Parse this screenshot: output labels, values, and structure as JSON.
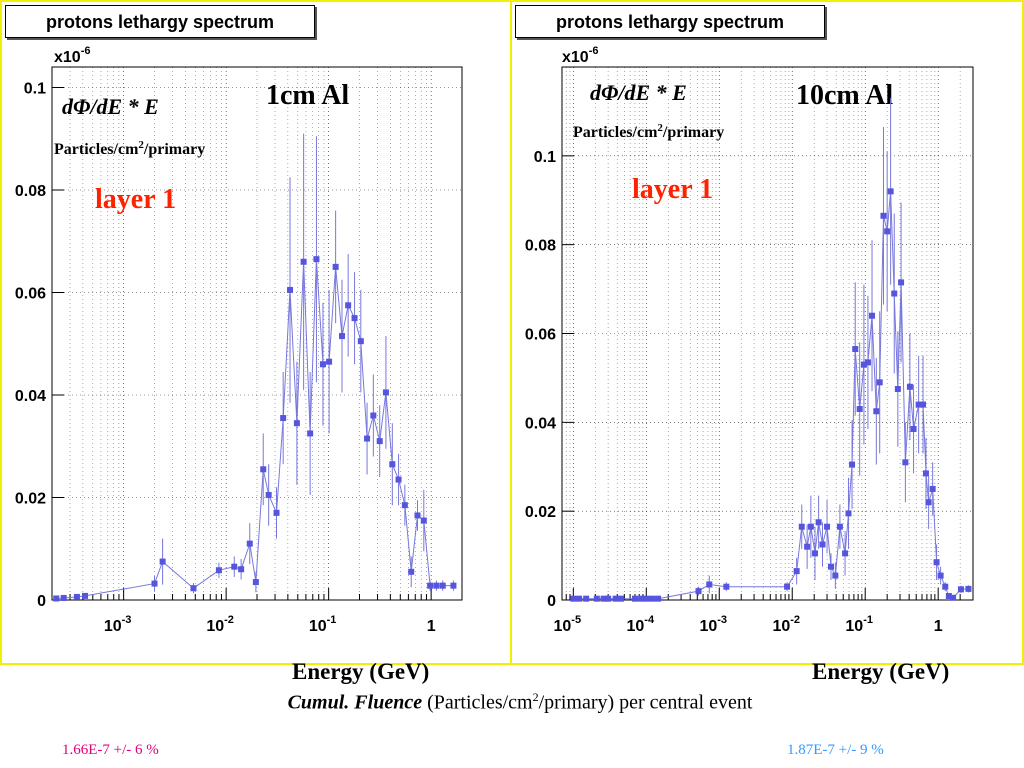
{
  "caption": {
    "bold_part": "Cumul. Fluence",
    "rest_before_sup": " (Particles/cm",
    "sup": "2",
    "rest_after_sup": "/primary) per central event"
  },
  "results": {
    "left": "1.66E-7 +/- 6 %",
    "right": "1.87E-7 +/- 9 %",
    "left_color": "#e0007a",
    "right_color": "#3399ff"
  },
  "colors": {
    "marker": "#5555dd",
    "line": "#7777dd",
    "frame": "#f0f000",
    "red": "#ff2200"
  },
  "chart_data": [
    {
      "type": "line",
      "title": "protons lethargy spectrum",
      "exponent": "x10",
      "exponent_sup": "-6",
      "ylabel": "dΦ/dE * E",
      "units_before_sup": "Particles/cm",
      "units_sup": "2",
      "units_after_sup": "/primary",
      "annotation": "1cm Al",
      "layer_label": "layer 1",
      "xlabel": "Energy (GeV)",
      "xscale": "log",
      "xlim": [
        0.0002,
        2
      ],
      "ylim": [
        0,
        0.104
      ],
      "xticks": [
        {
          "v": 0.001,
          "m": "10",
          "e": "-3"
        },
        {
          "v": 0.01,
          "m": "10",
          "e": "-2"
        },
        {
          "v": 0.1,
          "m": "10",
          "e": "-1"
        },
        {
          "v": 1,
          "m": "1",
          "e": ""
        }
      ],
      "yticks": [
        "0",
        "0.02",
        "0.04",
        "0.06",
        "0.08",
        "0.1"
      ],
      "grid": true,
      "x": [
        0.00022,
        0.00026,
        0.00035,
        0.00042,
        0.002,
        0.0024,
        0.0048,
        0.0085,
        0.012,
        0.014,
        0.017,
        0.0195,
        0.023,
        0.026,
        0.031,
        0.036,
        0.042,
        0.049,
        0.057,
        0.066,
        0.076,
        0.088,
        0.101,
        0.117,
        0.135,
        0.155,
        0.179,
        0.206,
        0.237,
        0.273,
        0.315,
        0.362,
        0.418,
        0.481,
        0.554,
        0.639,
        0.736,
        0.848,
        0.977,
        1.125,
        1.297,
        1.65
      ],
      "y": [
        0.0003,
        0.0004,
        0.0006,
        0.0008,
        0.0032,
        0.0075,
        0.0023,
        0.0058,
        0.0065,
        0.006,
        0.011,
        0.0035,
        0.0255,
        0.0205,
        0.017,
        0.0355,
        0.0605,
        0.0345,
        0.066,
        0.0325,
        0.0665,
        0.046,
        0.0465,
        0.065,
        0.0515,
        0.0575,
        0.055,
        0.0505,
        0.0315,
        0.036,
        0.031,
        0.0405,
        0.0265,
        0.0235,
        0.0185,
        0.0055,
        0.0165,
        0.0155,
        0.0028,
        0.0028,
        0.0028,
        0.0028
      ],
      "yerr": [
        0,
        0,
        0,
        0,
        0.0015,
        0.0045,
        0.001,
        0.0015,
        0.002,
        0.002,
        0.004,
        0.002,
        0.007,
        0.006,
        0.005,
        0.009,
        0.022,
        0.012,
        0.025,
        0.012,
        0.024,
        0.012,
        0.014,
        0.011,
        0.011,
        0.01,
        0.009,
        0.01,
        0.007,
        0.008,
        0.007,
        0.011,
        0.008,
        0.005,
        0.004,
        0.003,
        0.003,
        0.006,
        0.001,
        0.001,
        0.001,
        0.001
      ]
    },
    {
      "type": "line",
      "title": "protons lethargy spectrum",
      "exponent": "x10",
      "exponent_sup": "-6",
      "ylabel": "dΦ/dE * E",
      "units_before_sup": "Particles/cm",
      "units_sup": "2",
      "units_after_sup": "/primary",
      "annotation": "10cm Al",
      "layer_label": "layer 1",
      "xlabel": "Energy (GeV)",
      "xscale": "log",
      "xlim": [
        7e-06,
        3
      ],
      "ylim": [
        0,
        0.12
      ],
      "xticks": [
        {
          "v": 1e-05,
          "m": "10",
          "e": "-5"
        },
        {
          "v": 0.0001,
          "m": "10",
          "e": "-4"
        },
        {
          "v": 0.001,
          "m": "10",
          "e": "-3"
        },
        {
          "v": 0.01,
          "m": "10",
          "e": "-2"
        },
        {
          "v": 0.1,
          "m": "10",
          "e": "-1"
        },
        {
          "v": 1,
          "m": "1",
          "e": ""
        }
      ],
      "yticks": [
        "0",
        "0.02",
        "0.04",
        "0.06",
        "0.08",
        "0.1"
      ],
      "grid": true,
      "x": [
        1e-05,
        1.2e-05,
        1.5e-05,
        2.1e-05,
        2.6e-05,
        3e-05,
        3.8e-05,
        4.5e-05,
        7e-05,
        8.5e-05,
        0.0001,
        0.00012,
        0.000145,
        0.00052,
        0.00073,
        0.00125,
        0.0085,
        0.0115,
        0.0135,
        0.016,
        0.018,
        0.0205,
        0.023,
        0.026,
        0.03,
        0.034,
        0.039,
        0.045,
        0.053,
        0.059,
        0.066,
        0.073,
        0.084,
        0.096,
        0.109,
        0.124,
        0.142,
        0.158,
        0.178,
        0.2,
        0.223,
        0.25,
        0.28,
        0.31,
        0.355,
        0.41,
        0.46,
        0.54,
        0.62,
        0.68,
        0.74,
        0.84,
        0.95,
        1.08,
        1.25,
        1.4,
        1.6,
        2.05,
        2.6
      ],
      "y": [
        0.0003,
        0.0003,
        0.0003,
        0.0003,
        0.0003,
        0.0003,
        0.0003,
        0.0003,
        0.0003,
        0.0003,
        0.0003,
        0.0003,
        0.0003,
        0.002,
        0.0035,
        0.003,
        0.003,
        0.0065,
        0.0165,
        0.012,
        0.0165,
        0.0105,
        0.0175,
        0.0125,
        0.0165,
        0.0075,
        0.0055,
        0.0165,
        0.0105,
        0.0195,
        0.0305,
        0.0565,
        0.043,
        0.053,
        0.0535,
        0.064,
        0.0425,
        0.049,
        0.0865,
        0.083,
        0.092,
        0.069,
        0.0475,
        0.0715,
        0.031,
        0.048,
        0.0385,
        0.044,
        0.044,
        0.0285,
        0.022,
        0.025,
        0.0085,
        0.0055,
        0.003,
        0.0009,
        0.0005,
        0.0024,
        0.0025
      ],
      "yerr": [
        0,
        0,
        0,
        0,
        0,
        0,
        0,
        0,
        0,
        0,
        0,
        0,
        0,
        0.001,
        0.002,
        0.001,
        0.001,
        0.003,
        0.005,
        0.005,
        0.007,
        0.006,
        0.006,
        0.005,
        0.006,
        0.003,
        0.003,
        0.005,
        0.005,
        0.008,
        0.01,
        0.015,
        0.015,
        0.018,
        0.015,
        0.017,
        0.012,
        0.016,
        0.02,
        0.018,
        0.021,
        0.018,
        0.013,
        0.018,
        0.009,
        0.012,
        0.01,
        0.011,
        0.011,
        0.008,
        0.006,
        0.006,
        0.004,
        0.002,
        0.001,
        0.0005,
        0.0003,
        0.0008,
        0.0008
      ]
    }
  ]
}
